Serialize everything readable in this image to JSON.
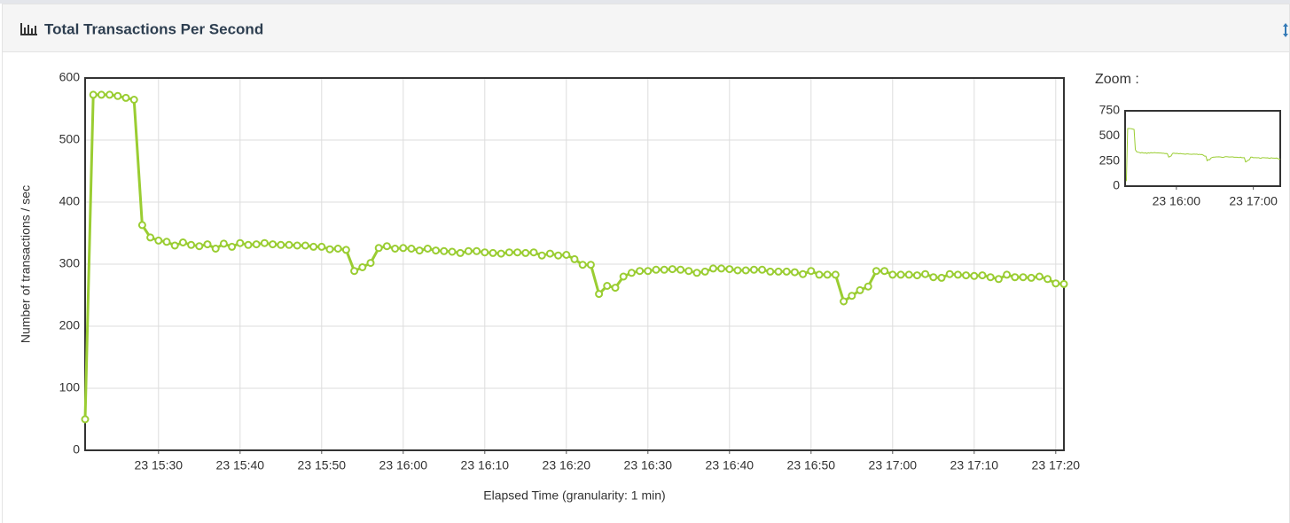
{
  "chart_data": {
    "type": "line",
    "title": "Total Transactions Per Second",
    "y_label": "Number of transactions / sec",
    "x_label": "Elapsed Time (granularity: 1 min)",
    "color": "#9acd32",
    "grid": true,
    "x": [
      "23 15:21",
      "23 15:22",
      "23 15:23",
      "23 15:24",
      "23 15:25",
      "23 15:26",
      "23 15:27",
      "23 15:28",
      "23 15:29",
      "23 15:30",
      "23 15:31",
      "23 15:32",
      "23 15:33",
      "23 15:34",
      "23 15:35",
      "23 15:36",
      "23 15:37",
      "23 15:38",
      "23 15:39",
      "23 15:40",
      "23 15:41",
      "23 15:42",
      "23 15:43",
      "23 15:44",
      "23 15:45",
      "23 15:46",
      "23 15:47",
      "23 15:48",
      "23 15:49",
      "23 15:50",
      "23 15:51",
      "23 15:52",
      "23 15:53",
      "23 15:54",
      "23 15:55",
      "23 15:56",
      "23 15:57",
      "23 15:58",
      "23 15:59",
      "23 16:00",
      "23 16:01",
      "23 16:02",
      "23 16:03",
      "23 16:04",
      "23 16:05",
      "23 16:06",
      "23 16:07",
      "23 16:08",
      "23 16:09",
      "23 16:10",
      "23 16:11",
      "23 16:12",
      "23 16:13",
      "23 16:14",
      "23 16:15",
      "23 16:16",
      "23 16:17",
      "23 16:18",
      "23 16:19",
      "23 16:20",
      "23 16:21",
      "23 16:22",
      "23 16:23",
      "23 16:24",
      "23 16:25",
      "23 16:26",
      "23 16:27",
      "23 16:28",
      "23 16:29",
      "23 16:30",
      "23 16:31",
      "23 16:32",
      "23 16:33",
      "23 16:34",
      "23 16:35",
      "23 16:36",
      "23 16:37",
      "23 16:38",
      "23 16:39",
      "23 16:40",
      "23 16:41",
      "23 16:42",
      "23 16:43",
      "23 16:44",
      "23 16:45",
      "23 16:46",
      "23 16:47",
      "23 16:48",
      "23 16:49",
      "23 16:50",
      "23 16:51",
      "23 16:52",
      "23 16:53",
      "23 16:54",
      "23 16:55",
      "23 16:56",
      "23 16:57",
      "23 16:58",
      "23 16:59",
      "23 17:00",
      "23 17:01",
      "23 17:02",
      "23 17:03",
      "23 17:04",
      "23 17:05",
      "23 17:06",
      "23 17:07",
      "23 17:08",
      "23 17:09",
      "23 17:10",
      "23 17:11",
      "23 17:12",
      "23 17:13",
      "23 17:14",
      "23 17:15",
      "23 17:16",
      "23 17:17",
      "23 17:18",
      "23 17:19",
      "23 17:20",
      "23 17:21"
    ],
    "values": [
      50,
      573,
      573,
      573,
      571,
      568,
      565,
      363,
      343,
      338,
      336,
      330,
      335,
      331,
      329,
      332,
      325,
      333,
      328,
      334,
      331,
      332,
      334,
      332,
      331,
      331,
      330,
      330,
      328,
      328,
      324,
      325,
      323,
      289,
      295,
      302,
      326,
      329,
      325,
      326,
      325,
      322,
      325,
      322,
      321,
      320,
      318,
      321,
      321,
      319,
      318,
      317,
      319,
      319,
      318,
      319,
      314,
      317,
      314,
      315,
      308,
      299,
      299,
      252,
      265,
      262,
      280,
      286,
      289,
      289,
      291,
      291,
      292,
      291,
      289,
      286,
      288,
      293,
      293,
      292,
      290,
      290,
      291,
      291,
      288,
      288,
      288,
      287,
      284,
      289,
      283,
      283,
      283,
      240,
      249,
      258,
      264,
      289,
      289,
      283,
      283,
      283,
      282,
      284,
      279,
      278,
      284,
      283,
      282,
      281,
      282,
      279,
      276,
      283,
      279,
      279,
      278,
      280,
      276,
      269,
      268
    ],
    "xlim": [
      "23 15:21",
      "23 17:21"
    ],
    "xticks": [
      "23 15:30",
      "23 15:40",
      "23 15:50",
      "23 16:00",
      "23 16:10",
      "23 16:20",
      "23 16:30",
      "23 16:40",
      "23 16:50",
      "23 17:00",
      "23 17:10",
      "23 17:20"
    ],
    "ylim": [
      0,
      600
    ],
    "yticks": [
      0,
      100,
      200,
      300,
      400,
      500,
      600
    ],
    "zoom": {
      "title": "Zoom :",
      "xlim": [
        "23 15:20",
        "23 17:21"
      ],
      "xticks": [
        "23 16:00",
        "23 17:00"
      ],
      "ylim": [
        0,
        750
      ],
      "yticks": [
        0,
        250,
        500,
        750
      ]
    }
  }
}
